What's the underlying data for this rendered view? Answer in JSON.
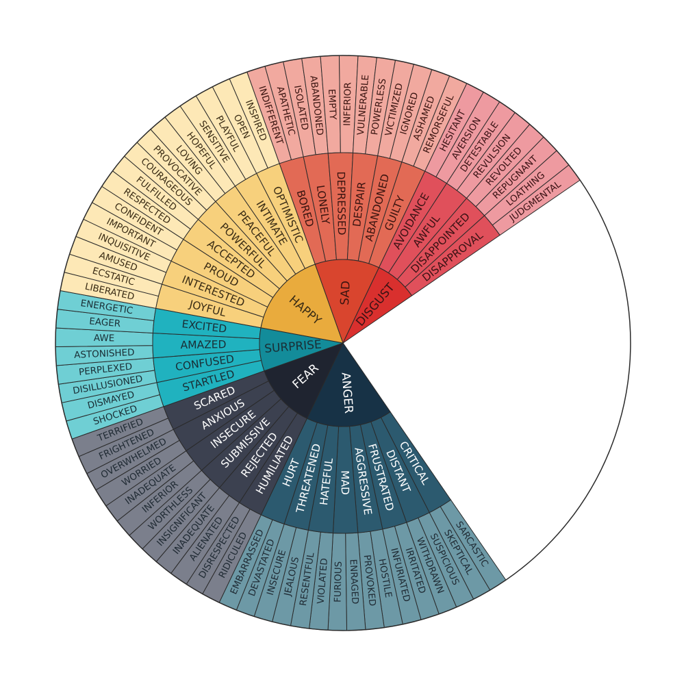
{
  "wheel": {
    "colors": {
      "outline": "#2a2a2a"
    },
    "core": [
      {
        "label": "ANGER",
        "colors": {
          "core": "#173246",
          "mid": "#2c5a6f",
          "outer": "#6d99a6",
          "text": "#ffffff"
        },
        "middle": [
          {
            "label": "CRITICAL",
            "outer": [
              "SARCASTIC",
              "SKEPTICAL"
            ]
          },
          {
            "label": "DISTANT",
            "outer": [
              "SUSPICIOUS",
              "WITHDRAWN"
            ]
          },
          {
            "label": "FRUSTRATED",
            "outer": [
              "IRRITATED",
              "INFURIATED"
            ]
          },
          {
            "label": "AGGRESSIVE",
            "outer": [
              "HOSTILE",
              "PROVOKED"
            ]
          },
          {
            "label": "MAD",
            "outer": [
              "ENRAGED",
              "FURIOUS"
            ]
          },
          {
            "label": "HATEFUL",
            "outer": [
              "VIOLATED",
              "RESENTFUL"
            ]
          },
          {
            "label": "THREATENED",
            "outer": [
              "JEALOUS",
              "INSECURE"
            ]
          },
          {
            "label": "HURT",
            "outer": [
              "DEVASTATED",
              "EMBARRASSED"
            ]
          }
        ]
      },
      {
        "label": "FEAR",
        "colors": {
          "core": "#1f2430",
          "mid": "#3c4150",
          "outer": "#7b7f8c",
          "text": "#ffffff"
        },
        "middle": [
          {
            "label": "HUMILIATED",
            "outer": [
              "RIDICULED",
              "DISRESPECTED"
            ]
          },
          {
            "label": "REJECTED",
            "outer": [
              "ALIENATED",
              "INADEQUATE"
            ]
          },
          {
            "label": "SUBMISSIVE",
            "outer": [
              "INSIGNIFICANT",
              "WORTHLESS"
            ]
          },
          {
            "label": "INSECURE",
            "outer": [
              "INFERIOR",
              "INADEQUATE"
            ]
          },
          {
            "label": "ANXIOUS",
            "outer": [
              "WORRIED",
              "OVERWHELMED"
            ]
          },
          {
            "label": "SCARED",
            "outer": [
              "FRIGHTENED",
              "TERRIFIED"
            ]
          }
        ]
      },
      {
        "label": "SURPRISE",
        "colors": {
          "core": "#138c9a",
          "mid": "#20b2bf",
          "outer": "#6fcfd4",
          "text": "#1a2e35"
        },
        "middle": [
          {
            "label": "STARTLED",
            "outer": [
              "SHOCKED",
              "DISMAYED"
            ]
          },
          {
            "label": "CONFUSED",
            "outer": [
              "DISILLUSIONED",
              "PERPLEXED"
            ]
          },
          {
            "label": "AMAZED",
            "outer": [
              "ASTONISHED",
              "AWE"
            ]
          },
          {
            "label": "EXCITED",
            "outer": [
              "EAGER",
              "ENERGETIC"
            ]
          }
        ]
      },
      {
        "label": "HAPPY",
        "colors": {
          "core": "#e9ab3d",
          "mid": "#f7d07c",
          "outer": "#fde8b6",
          "text": "#3a2c15"
        },
        "middle": [
          {
            "label": "JOYFUL",
            "outer": [
              "LIBERATED",
              "ECSTATIC"
            ]
          },
          {
            "label": "INTERESTED",
            "outer": [
              "AMUSED",
              "INQUISITIVE"
            ]
          },
          {
            "label": "PROUD",
            "outer": [
              "IMPORTANT",
              "CONFIDENT"
            ]
          },
          {
            "label": "ACCEPTED",
            "outer": [
              "RESPECTED",
              "FULFILLED"
            ]
          },
          {
            "label": "POWERFUL",
            "outer": [
              "COURAGEOUS",
              "PROVOCATIVE"
            ]
          },
          {
            "label": "PEACEFUL",
            "outer": [
              "LOVING",
              "HOPEFUL"
            ]
          },
          {
            "label": "INTIMATE",
            "outer": [
              "SENSITIVE",
              "PLAYFUL"
            ]
          },
          {
            "label": "OPTIMISTIC",
            "outer": [
              "OPEN",
              "INSPIRED"
            ]
          }
        ]
      },
      {
        "label": "SAD",
        "colors": {
          "core": "#d9452e",
          "mid": "#e26a55",
          "outer": "#f1a99f",
          "text": "#3a1410"
        },
        "middle": [
          {
            "label": "BORED",
            "outer": [
              "INDIFFERENT",
              "APATHETIC"
            ]
          },
          {
            "label": "LONELY",
            "outer": [
              "ISOLATED",
              "ABANDONED"
            ]
          },
          {
            "label": "DEPRESSED",
            "outer": [
              "EMPTY",
              "INFERIOR"
            ]
          },
          {
            "label": "DESPAIR",
            "outer": [
              "VULNERABLE",
              "POWERLESS"
            ]
          },
          {
            "label": "ABANDONED",
            "outer": [
              "VICTIMIZED",
              "IGNORED"
            ]
          },
          {
            "label": "GUILTY",
            "outer": [
              "ASHAMED",
              "REMORSEFUL"
            ]
          }
        ]
      },
      {
        "label": "DISGUST",
        "colors": {
          "core": "#d9302e",
          "mid": "#e0505b",
          "outer": "#ee9aa0",
          "text": "#3a1214"
        },
        "middle": [
          {
            "label": "AVOIDANCE",
            "outer": [
              "HESITANT",
              "AVERSION"
            ]
          },
          {
            "label": "AWFUL",
            "outer": [
              "DETESTABLE",
              "REVULSION"
            ]
          },
          {
            "label": "DISAPPOINTED",
            "outer": [
              "REVOLTED",
              "REPUGNANT"
            ]
          },
          {
            "label": "DISAPPROVAL",
            "outer": [
              "LOATHING",
              "JUDGMENTAL"
            ]
          }
        ]
      }
    ]
  }
}
